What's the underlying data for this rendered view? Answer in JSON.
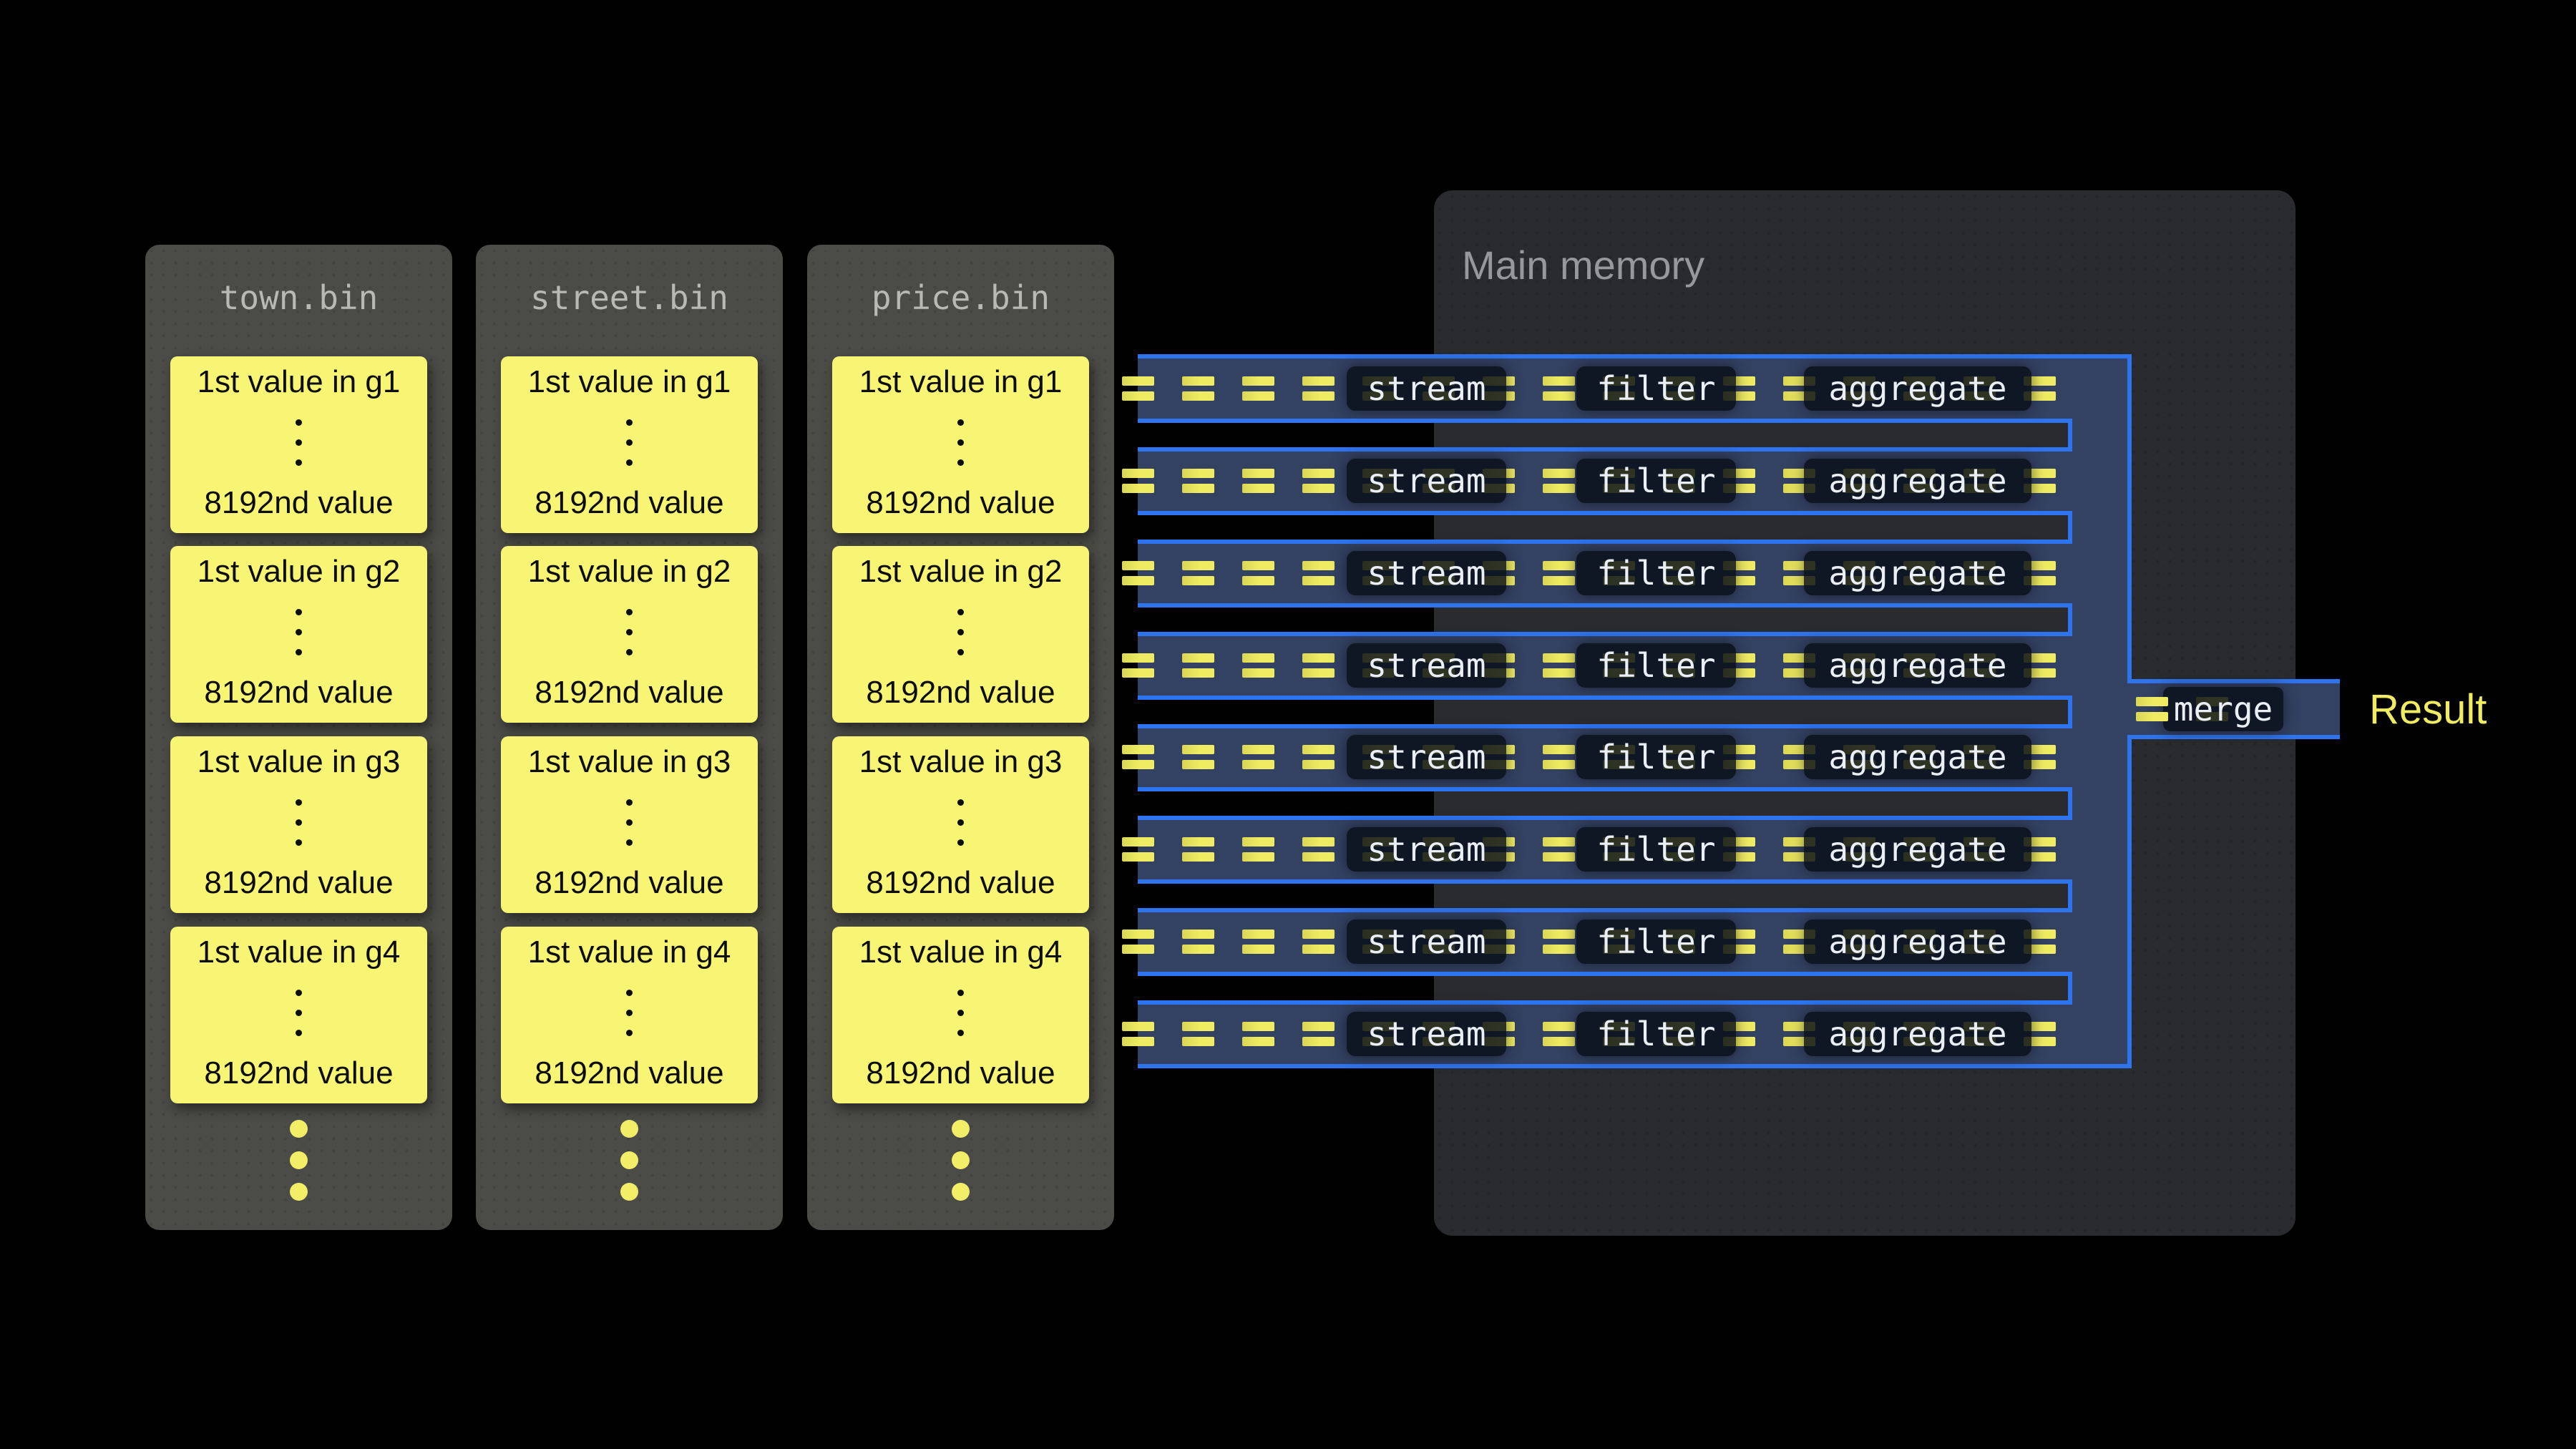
{
  "files": {
    "columns": [
      {
        "title": "town.bin"
      },
      {
        "title": "street.bin"
      },
      {
        "title": "price.bin"
      }
    ],
    "cards": [
      {
        "top": "1st value in g1",
        "bottom": "8192nd value"
      },
      {
        "top": "1st value in g2",
        "bottom": "8192nd value"
      },
      {
        "top": "1st value in g3",
        "bottom": "8192nd value"
      },
      {
        "top": "1st value in g4",
        "bottom": "8192nd value"
      }
    ],
    "more_values_dots": 3,
    "card_color": "#f7f573",
    "panel_color": "#4b4b47"
  },
  "memory": {
    "title": "Main memory",
    "panel_color": "#292b2e",
    "title_color": "#98989b"
  },
  "pipeline": {
    "row_count": 8,
    "operators": [
      {
        "label": "stream"
      },
      {
        "label": "filter"
      },
      {
        "label": "aggregate"
      }
    ],
    "merge_label": "merge",
    "result_label": "Result",
    "accent_blue": "#2e74ef",
    "lane_fill": "#334162",
    "token_yellow": "#efec63",
    "operator_box_color": "#0a0f18"
  }
}
